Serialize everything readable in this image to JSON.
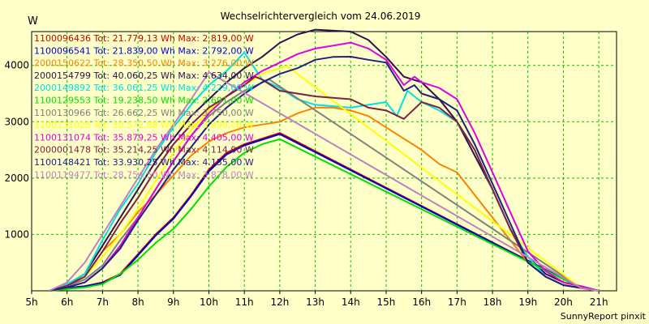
{
  "chart_data": {
    "type": "line",
    "title": "Wechselrichtervergleich vom 24.06.2019",
    "ylabel": "W",
    "credit": "SunnyReport pinxit",
    "xlim": [
      5,
      21.5
    ],
    "ylim": [
      0,
      4600
    ],
    "x_ticks": [
      5,
      6,
      7,
      8,
      9,
      10,
      11,
      12,
      13,
      14,
      15,
      16,
      17,
      18,
      19,
      20,
      21
    ],
    "x_tick_labels": [
      "5h",
      "6h",
      "7h",
      "8h",
      "9h",
      "10h",
      "11h",
      "12h",
      "13h",
      "14h",
      "15h",
      "16h",
      "17h",
      "18h",
      "19h",
      "20h",
      "21h"
    ],
    "y_ticks": [
      1000,
      2000,
      3000,
      4000
    ],
    "y_tick_labels": [
      "1000",
      "2000",
      "3000",
      "4000"
    ],
    "series": [
      {
        "name": "1100096436",
        "legend": "1100096436 Tot: 21.779,13 Wh Max: 2.819,00 W",
        "color": "#cc0000",
        "points": [
          [
            5.5,
            0
          ],
          [
            6,
            50
          ],
          [
            6.5,
            80
          ],
          [
            7,
            150
          ],
          [
            7.5,
            300
          ],
          [
            8,
            650
          ],
          [
            8.5,
            1000
          ],
          [
            9,
            1300
          ],
          [
            9.5,
            1700
          ],
          [
            10,
            2150
          ],
          [
            10.5,
            2450
          ],
          [
            11,
            2600
          ],
          [
            11.5,
            2700
          ],
          [
            12,
            2800
          ],
          [
            20.5,
            50
          ],
          [
            21,
            0
          ]
        ]
      },
      {
        "name": "1100096541",
        "legend": "1100096541 Tot: 21.839,00 Wh Max: 2.792,00 W",
        "color": "#0000cc",
        "points": [
          [
            5.5,
            0
          ],
          [
            6,
            50
          ],
          [
            6.5,
            80
          ],
          [
            7,
            140
          ],
          [
            7.5,
            280
          ],
          [
            8,
            630
          ],
          [
            8.5,
            980
          ],
          [
            9,
            1280
          ],
          [
            9.5,
            1680
          ],
          [
            10,
            2120
          ],
          [
            10.5,
            2420
          ],
          [
            11,
            2580
          ],
          [
            11.5,
            2680
          ],
          [
            12,
            2780
          ],
          [
            20.5,
            50
          ],
          [
            21,
            0
          ]
        ]
      },
      {
        "name": "2000150622",
        "legend": "2000150622 Tot: 28.350,50 Wh Max: 3.276,00 W",
        "color": "#ff8000",
        "points": [
          [
            5.5,
            0
          ],
          [
            6,
            80
          ],
          [
            6.5,
            250
          ],
          [
            7,
            700
          ],
          [
            7.5,
            1000
          ],
          [
            8,
            1400
          ],
          [
            8.5,
            1700
          ],
          [
            9,
            2050
          ],
          [
            9.5,
            2400
          ],
          [
            10,
            2650
          ],
          [
            10.5,
            2800
          ],
          [
            11,
            2900
          ],
          [
            12,
            3000
          ],
          [
            12.5,
            3150
          ],
          [
            13,
            3250
          ],
          [
            13.5,
            3250
          ],
          [
            14,
            3200
          ],
          [
            14.5,
            3100
          ],
          [
            15,
            2900
          ],
          [
            15.5,
            2700
          ],
          [
            16,
            2500
          ],
          [
            16.5,
            2250
          ],
          [
            17,
            2100
          ],
          [
            17.5,
            1700
          ],
          [
            18,
            1300
          ],
          [
            18.5,
            900
          ],
          [
            19,
            500
          ],
          [
            19.5,
            250
          ],
          [
            20,
            100
          ],
          [
            20.5,
            50
          ],
          [
            21,
            0
          ]
        ]
      },
      {
        "name": "2000154799",
        "legend": "2000154799 Tot: 40.060,25 Wh Max: 4.634,00 W",
        "color": "#301050",
        "points": [
          [
            5.5,
            0
          ],
          [
            6,
            100
          ],
          [
            6.5,
            300
          ],
          [
            7,
            800
          ],
          [
            7.5,
            1300
          ],
          [
            8,
            1800
          ],
          [
            8.5,
            2300
          ],
          [
            9,
            2700
          ],
          [
            9.5,
            3100
          ],
          [
            10,
            3400
          ],
          [
            10.5,
            3700
          ],
          [
            11,
            3950
          ],
          [
            11.5,
            4150
          ],
          [
            12,
            4400
          ],
          [
            12.5,
            4550
          ],
          [
            13,
            4634
          ],
          [
            14,
            4600
          ],
          [
            14.5,
            4450
          ],
          [
            15,
            4150
          ],
          [
            15.5,
            3800
          ],
          [
            16,
            3700
          ],
          [
            16.5,
            3400
          ],
          [
            17,
            3000
          ],
          [
            17.5,
            2400
          ],
          [
            18,
            1800
          ],
          [
            18.5,
            1100
          ],
          [
            19,
            600
          ],
          [
            19.5,
            300
          ],
          [
            20,
            150
          ],
          [
            20.5,
            80
          ],
          [
            21,
            0
          ]
        ]
      },
      {
        "name": "2000149892",
        "legend": "2000149892 Tot: 36.061,25 Wh Max: 4.229,00 W",
        "color": "#00e0e0",
        "points": [
          [
            5.5,
            0
          ],
          [
            6,
            120
          ],
          [
            6.5,
            300
          ],
          [
            7,
            900
          ],
          [
            7.5,
            1450
          ],
          [
            8,
            1900
          ],
          [
            8.5,
            2450
          ],
          [
            9,
            2900
          ],
          [
            9.5,
            3300
          ],
          [
            10,
            3650
          ],
          [
            10.5,
            3900
          ],
          [
            11,
            4229
          ],
          [
            11.5,
            3750
          ],
          [
            12,
            3600
          ],
          [
            12.5,
            3400
          ],
          [
            13,
            3300
          ],
          [
            14,
            3250
          ],
          [
            14.5,
            3300
          ],
          [
            15,
            3350
          ],
          [
            15.3,
            3100
          ],
          [
            15.6,
            3550
          ],
          [
            16,
            3350
          ],
          [
            16.5,
            3200
          ],
          [
            17,
            3000
          ],
          [
            17.5,
            2500
          ],
          [
            18,
            1800
          ],
          [
            18.5,
            1100
          ],
          [
            19,
            600
          ],
          [
            19.5,
            250
          ],
          [
            20,
            100
          ],
          [
            20.5,
            50
          ],
          [
            21,
            0
          ]
        ]
      },
      {
        "name": "1100129553",
        "legend": "1100129553 Tot: 19.238,50 Wh Max: 2.691,00 W",
        "color": "#00e000",
        "points": [
          [
            5.5,
            0
          ],
          [
            6,
            30
          ],
          [
            6.5,
            60
          ],
          [
            7,
            120
          ],
          [
            7.5,
            300
          ],
          [
            8,
            550
          ],
          [
            8.5,
            850
          ],
          [
            9,
            1100
          ],
          [
            9.5,
            1450
          ],
          [
            10,
            1850
          ],
          [
            10.5,
            2200
          ],
          [
            11,
            2450
          ],
          [
            11.5,
            2600
          ],
          [
            12,
            2691
          ],
          [
            20.5,
            50
          ],
          [
            21,
            0
          ]
        ]
      },
      {
        "name": "1100130966",
        "legend": "1100130966 Tot: 26.662,25 Wh Max: 3.750,00 W",
        "color": "#808080",
        "points": [
          [
            5.5,
            0
          ],
          [
            6,
            80
          ],
          [
            6.5,
            200
          ],
          [
            7,
            450
          ],
          [
            7.5,
            900
          ],
          [
            8,
            1300
          ],
          [
            8.5,
            1800
          ],
          [
            9,
            2300
          ],
          [
            9.5,
            2750
          ],
          [
            10,
            3100
          ],
          [
            10.5,
            3350
          ],
          [
            11,
            3550
          ],
          [
            11.7,
            3750
          ],
          [
            20.5,
            50
          ],
          [
            21,
            0
          ]
        ]
      },
      {
        "name": "1100131025",
        "legend": "1100131025 Tot: 30.572,88 Wh Max: 3.990,00 W",
        "color": "#ffff00",
        "points": [
          [
            5.5,
            0
          ],
          [
            6,
            90
          ],
          [
            6.5,
            250
          ],
          [
            7,
            600
          ],
          [
            7.5,
            1000
          ],
          [
            8,
            1450
          ],
          [
            8.5,
            1950
          ],
          [
            9,
            2450
          ],
          [
            9.5,
            2850
          ],
          [
            10,
            3200
          ],
          [
            10.5,
            3450
          ],
          [
            11,
            3650
          ],
          [
            11.5,
            3850
          ],
          [
            12.2,
            3990
          ],
          [
            20.5,
            50
          ],
          [
            21,
            0
          ]
        ]
      },
      {
        "name": "1100131074",
        "legend": "1100131074 Tot: 35.879,25 Wh Max: 4.405,00 W",
        "color": "#e000e0",
        "points": [
          [
            5.5,
            0
          ],
          [
            6,
            60
          ],
          [
            6.5,
            150
          ],
          [
            7,
            400
          ],
          [
            7.5,
            800
          ],
          [
            8,
            1300
          ],
          [
            8.5,
            1800
          ],
          [
            9,
            2300
          ],
          [
            9.5,
            2750
          ],
          [
            10,
            3150
          ],
          [
            10.5,
            3450
          ],
          [
            11,
            3700
          ],
          [
            11.5,
            3900
          ],
          [
            12,
            4050
          ],
          [
            12.5,
            4200
          ],
          [
            13,
            4300
          ],
          [
            13.5,
            4350
          ],
          [
            14,
            4405
          ],
          [
            14.5,
            4300
          ],
          [
            15,
            4100
          ],
          [
            15.5,
            3650
          ],
          [
            15.8,
            3800
          ],
          [
            16,
            3700
          ],
          [
            16.5,
            3600
          ],
          [
            17,
            3400
          ],
          [
            17.5,
            2800
          ],
          [
            18,
            2100
          ],
          [
            18.5,
            1400
          ],
          [
            19,
            700
          ],
          [
            19.5,
            350
          ],
          [
            20,
            150
          ],
          [
            20.5,
            80
          ],
          [
            21,
            0
          ]
        ]
      },
      {
        "name": "2000001478",
        "legend": "2000001478 Tot: 35.214,25 Wh Max: 4.114,00 W",
        "color": "#802040",
        "points": [
          [
            5.5,
            0
          ],
          [
            6,
            90
          ],
          [
            6.5,
            250
          ],
          [
            7,
            700
          ],
          [
            7.5,
            1200
          ],
          [
            8,
            1650
          ],
          [
            8.5,
            2150
          ],
          [
            9,
            2600
          ],
          [
            9.5,
            2950
          ],
          [
            10,
            3250
          ],
          [
            10.5,
            3450
          ],
          [
            11,
            3650
          ],
          [
            11.3,
            3800
          ],
          [
            11.5,
            3750
          ],
          [
            12,
            3550
          ],
          [
            12.5,
            3500
          ],
          [
            13,
            3450
          ],
          [
            14,
            3400
          ],
          [
            14.5,
            3250
          ],
          [
            15,
            3200
          ],
          [
            15.5,
            3050
          ],
          [
            16,
            3350
          ],
          [
            16.5,
            3250
          ],
          [
            17,
            3000
          ],
          [
            17.5,
            2500
          ],
          [
            18,
            1800
          ],
          [
            18.5,
            1100
          ],
          [
            19,
            500
          ],
          [
            19.5,
            250
          ],
          [
            20,
            100
          ],
          [
            20.5,
            50
          ],
          [
            21,
            0
          ]
        ]
      },
      {
        "name": "1100148421",
        "legend": "1100148421 Tot: 33.930,25 Wh Max: 4.155,00 W",
        "color": "#202080",
        "points": [
          [
            5.5,
            0
          ],
          [
            6,
            60
          ],
          [
            6.5,
            150
          ],
          [
            7,
            400
          ],
          [
            7.5,
            750
          ],
          [
            8,
            1250
          ],
          [
            8.5,
            1700
          ],
          [
            9,
            2150
          ],
          [
            9.5,
            2550
          ],
          [
            10,
            2950
          ],
          [
            10.5,
            3250
          ],
          [
            11,
            3500
          ],
          [
            11.5,
            3700
          ],
          [
            12,
            3850
          ],
          [
            12.5,
            3950
          ],
          [
            13,
            4100
          ],
          [
            13.5,
            4150
          ],
          [
            14,
            4155
          ],
          [
            14.5,
            4100
          ],
          [
            15,
            4050
          ],
          [
            15.5,
            3550
          ],
          [
            15.8,
            3650
          ],
          [
            16,
            3500
          ],
          [
            16.5,
            3400
          ],
          [
            17,
            3200
          ],
          [
            17.5,
            2600
          ],
          [
            18,
            1900
          ],
          [
            18.5,
            1200
          ],
          [
            19,
            500
          ],
          [
            19.5,
            250
          ],
          [
            20,
            100
          ],
          [
            20.5,
            50
          ],
          [
            21,
            0
          ]
        ]
      },
      {
        "name": "1100119477",
        "legend": "1100119477 Tot: 28.754,50 Wh Max: 3.878,00 W",
        "color": "#c080c0",
        "points": [
          [
            5.5,
            0
          ],
          [
            6,
            150
          ],
          [
            6.5,
            500
          ],
          [
            7,
            1000
          ],
          [
            7.5,
            1500
          ],
          [
            8,
            2000
          ],
          [
            8.5,
            2500
          ],
          [
            9,
            2950
          ],
          [
            9.5,
            3400
          ],
          [
            10,
            3878
          ],
          [
            20.5,
            50
          ],
          [
            21,
            0
          ]
        ]
      }
    ]
  }
}
